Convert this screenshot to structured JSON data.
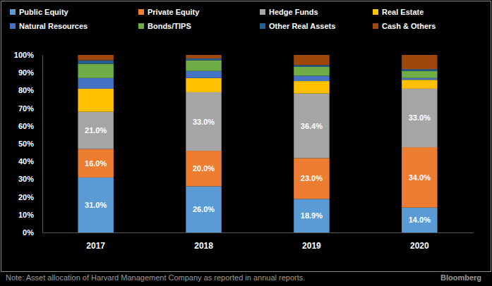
{
  "chart_data": {
    "type": "bar",
    "stacked": true,
    "legend": "top",
    "grid": false,
    "note": "Note: Asset allocation of Harvard Management Company as reported in annual reports.",
    "source": "Bloomberg",
    "categories": [
      "2017",
      "2018",
      "2019",
      "2020"
    ],
    "ylim": [
      0,
      100
    ],
    "yticks": [
      {
        "value": 0,
        "label": "0%"
      },
      {
        "value": 10,
        "label": "10%"
      },
      {
        "value": 20,
        "label": "20%"
      },
      {
        "value": 30,
        "label": "30%"
      },
      {
        "value": 40,
        "label": "40%"
      },
      {
        "value": 50,
        "label": "50%"
      },
      {
        "value": 60,
        "label": "60%"
      },
      {
        "value": 70,
        "label": "70%"
      },
      {
        "value": 80,
        "label": "80%"
      },
      {
        "value": 90,
        "label": "90%"
      },
      {
        "value": 100,
        "label": "100%"
      }
    ],
    "series": [
      {
        "name": "Public Equity",
        "color": "#5b9bd5",
        "values": [
          31,
          26,
          18.9,
          14
        ],
        "data_labels": true,
        "value_labels": [
          "31.0%",
          "26.0%",
          "18.9%",
          "14.0%"
        ]
      },
      {
        "name": "Private Equity",
        "color": "#ed7d31",
        "values": [
          16,
          20,
          23,
          34
        ],
        "data_labels": true,
        "value_labels": [
          "16.0%",
          "20.0%",
          "23.0%",
          "34.0%"
        ]
      },
      {
        "name": "Hedge Funds",
        "color": "#a5a5a5",
        "values": [
          21,
          33,
          36.4,
          33
        ],
        "data_labels": true,
        "value_labels": [
          "21.0%",
          "33.0%",
          "36.4%",
          "33.0%"
        ]
      },
      {
        "name": "Real Estate",
        "color": "#ffc000",
        "values": [
          13,
          8,
          7,
          5
        ],
        "data_labels": false
      },
      {
        "name": "Natural Resources",
        "color": "#4472c4",
        "values": [
          6,
          4,
          3,
          1
        ],
        "data_labels": false
      },
      {
        "name": "Bonds/TIPS",
        "color": "#70ad47",
        "values": [
          8,
          6,
          5,
          4
        ],
        "data_labels": false
      },
      {
        "name": "Other Real Assets",
        "color": "#255e91",
        "values": [
          2,
          1,
          1,
          1
        ],
        "data_labels": false
      },
      {
        "name": "Cash & Others",
        "color": "#9e480e",
        "values": [
          3,
          2,
          5.7,
          8
        ],
        "data_labels": false
      }
    ]
  }
}
